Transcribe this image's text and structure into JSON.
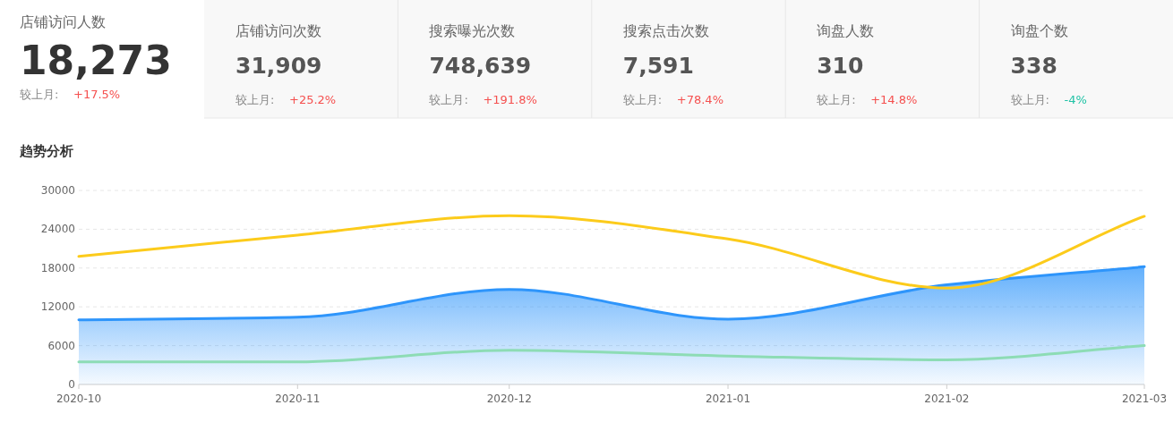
{
  "chart_data": [
    {
      "type": "other",
      "annotations": [
        "店铺访问人数",
        "18,273",
        "较上月:",
        "+17.5%",
        "店铺访问次数",
        "31,909",
        "较上月:",
        "+25.2%",
        "搜索曝光次数",
        "748,639",
        "较上月:",
        "+191.8%",
        "搜索点击次数",
        "7,591",
        "较上月:",
        "+78.4%",
        "询盘人数",
        "310",
        "较上月:",
        "+14.8%",
        "询盘个数",
        "338",
        "较上月:",
        "-4%"
      ],
      "colors": [
        "#f5504f",
        "#f5504f",
        "#f5504f",
        "#f5504f",
        "#f5504f",
        "#21c3a6"
      ]
    },
    {
      "type": "line",
      "title": "趋势分析",
      "x": [
        "2020-10",
        "2020-11",
        "2020-12",
        "2021-01",
        "2021-02",
        "2021-03"
      ],
      "series": [
        {
          "color": "#fccb1b",
          "values": [
            19800,
            23100,
            26100,
            22500,
            14900,
            26000
          ]
        },
        {
          "type": "area",
          "color": "#2e95fb",
          "values": [
            10000,
            10400,
            14700,
            10100,
            15400,
            18200
          ]
        },
        {
          "color": "#8ddcb5",
          "values": [
            3500,
            3500,
            5300,
            4400,
            3800,
            6000
          ]
        }
      ],
      "xlim": [
        "2020-10",
        "2021-03"
      ],
      "xticks": [
        "2020-10",
        "2020-11",
        "2020-12",
        "2021-01",
        "2021-02",
        "2021-03"
      ],
      "ylim": [
        0,
        30000
      ],
      "yticks": [
        0,
        6000,
        12000,
        18000,
        24000,
        30000
      ],
      "grid": "y",
      "marker": "none",
      "line_style": "solid"
    }
  ]
}
